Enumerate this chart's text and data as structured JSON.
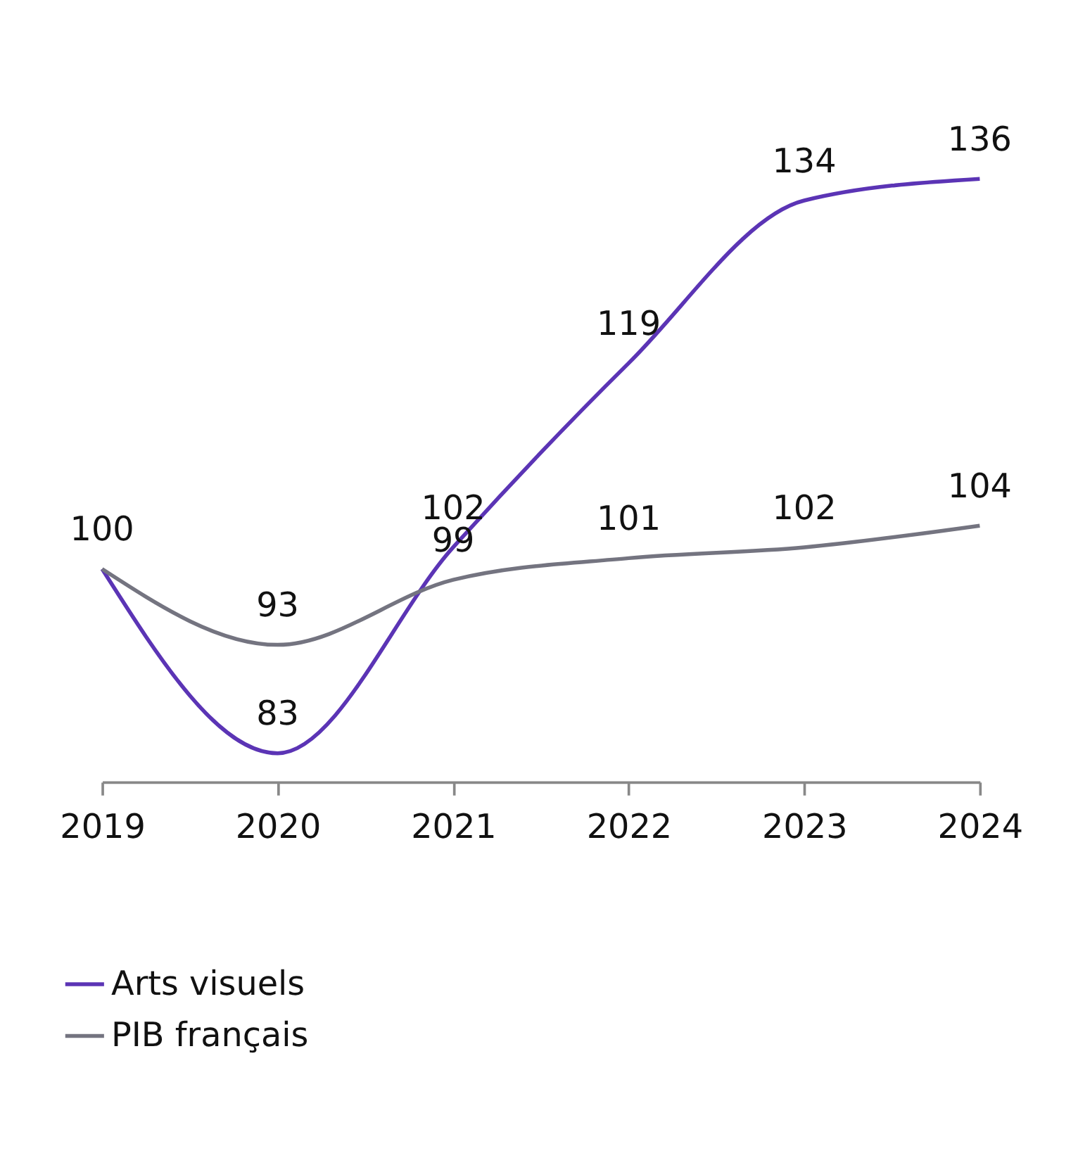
{
  "chart_data": {
    "type": "line",
    "categories": [
      "2019",
      "2020",
      "2021",
      "2022",
      "2023",
      "2024"
    ],
    "series": [
      {
        "name": "Arts visuels",
        "color": "#5b34b5",
        "values": [
          100,
          83,
          102,
          119,
          134,
          136
        ],
        "value_labels": [
          "100",
          "83",
          "102",
          "119",
          "134",
          "136"
        ]
      },
      {
        "name": "PIB français",
        "color": "#747480",
        "values": [
          100,
          93,
          99,
          101,
          102,
          104
        ],
        "value_labels": [
          null,
          "93",
          "99",
          "101",
          "102",
          "104"
        ]
      }
    ],
    "legend": "bottom left",
    "grid": false,
    "marker": "none",
    "line_style": "solid"
  }
}
